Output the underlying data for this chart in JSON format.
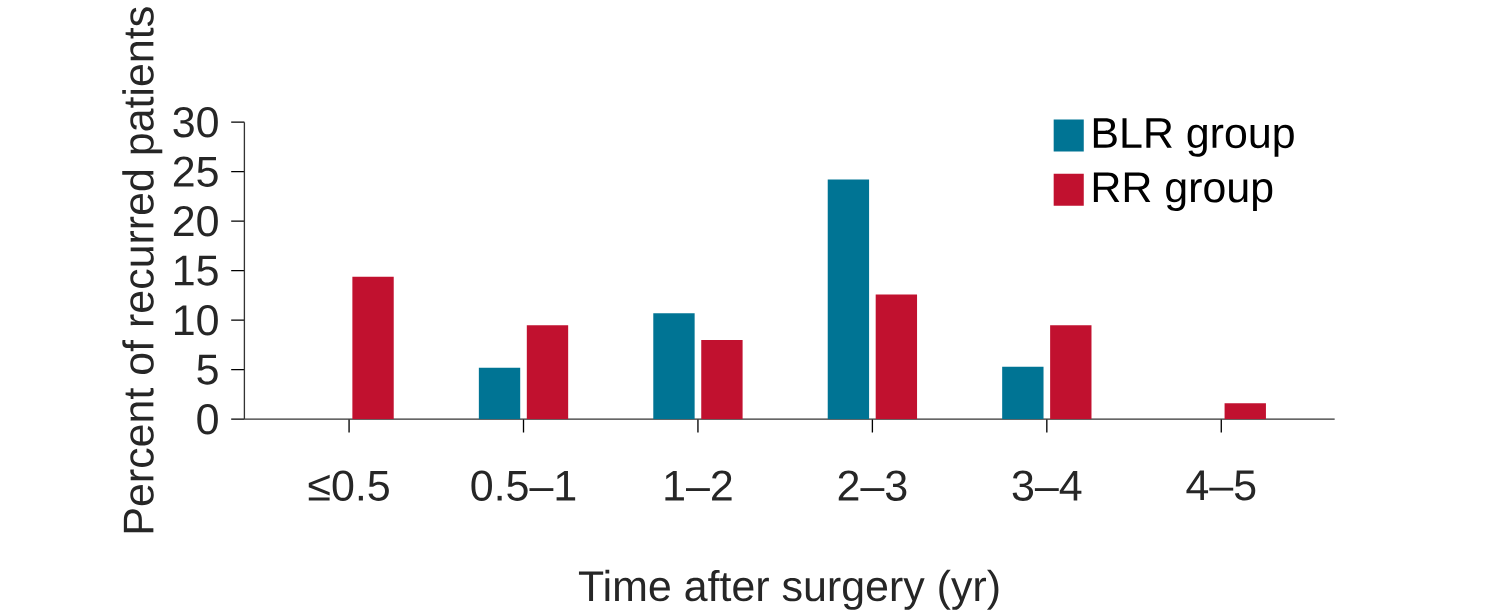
{
  "chart_data": {
    "type": "bar",
    "xlabel": "Time after surgery (yr)",
    "ylabel": "Percent of recurred patients",
    "categories": [
      "≤0.5",
      "0.5–1",
      "1–2",
      "2–3",
      "3–4",
      "4–5"
    ],
    "series": [
      {
        "name": "BLR group",
        "color": "#007494",
        "values": [
          0,
          5.2,
          10.7,
          24.2,
          5.3,
          0
        ]
      },
      {
        "name": "RR group",
        "color": "#c1112f",
        "values": [
          14.4,
          9.5,
          8.0,
          12.6,
          9.5,
          1.6
        ]
      }
    ],
    "ylim": [
      0,
      30
    ],
    "yticks": [
      0,
      5,
      10,
      15,
      20,
      25,
      30
    ],
    "legend": "top right",
    "grid": false
  }
}
